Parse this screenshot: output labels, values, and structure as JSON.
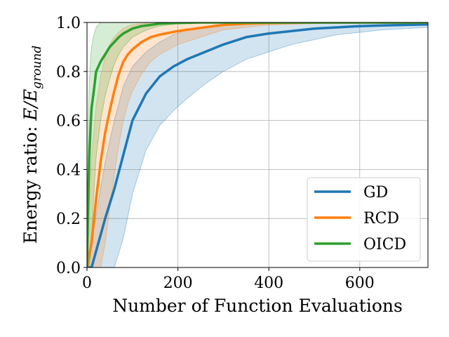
{
  "chart_data": {
    "type": "line",
    "xlabel": "Number of Function Evaluations",
    "ylabel_prefix": "Energy ratio: ",
    "ylabel_math_main": "E/E",
    "ylabel_math_sub": "ground",
    "xlim": [
      0,
      750
    ],
    "ylim": [
      0,
      1.0
    ],
    "xticks": [
      0,
      200,
      400,
      600
    ],
    "yticks": [
      0.0,
      0.2,
      0.4,
      0.6,
      0.8,
      1.0
    ],
    "xtick_labels": [
      "0",
      "200",
      "400",
      "600"
    ],
    "ytick_labels": [
      "0.0",
      "0.2",
      "0.4",
      "0.6",
      "0.8",
      "1.0"
    ],
    "grid": true,
    "legend_position": "lower-right",
    "series": [
      {
        "name": "GD",
        "color": "#1f77b4",
        "x": [
          0,
          10,
          25,
          40,
          60,
          80,
          100,
          130,
          160,
          190,
          220,
          260,
          300,
          350,
          400,
          450,
          500,
          550,
          600,
          650,
          700,
          750
        ],
        "mean": [
          0.0,
          0.0,
          0.1,
          0.2,
          0.32,
          0.46,
          0.6,
          0.71,
          0.78,
          0.82,
          0.85,
          0.88,
          0.91,
          0.94,
          0.955,
          0.965,
          0.975,
          0.98,
          0.985,
          0.988,
          0.99,
          0.992
        ],
        "lower": [
          0.0,
          0.0,
          0.0,
          0.0,
          0.0,
          0.12,
          0.3,
          0.48,
          0.58,
          0.64,
          0.69,
          0.75,
          0.8,
          0.85,
          0.88,
          0.91,
          0.93,
          0.95,
          0.96,
          0.97,
          0.975,
          0.98
        ],
        "upper": [
          0.0,
          0.1,
          0.27,
          0.43,
          0.6,
          0.74,
          0.82,
          0.88,
          0.92,
          0.95,
          0.97,
          0.98,
          0.99,
          0.995,
          1.0,
          1.0,
          1.0,
          1.0,
          1.0,
          1.0,
          1.0,
          1.0
        ]
      },
      {
        "name": "RCD",
        "color": "#ff7f0e",
        "x": [
          0,
          5,
          10,
          20,
          30,
          40,
          50,
          60,
          70,
          80,
          90,
          100,
          120,
          140,
          160,
          200,
          250,
          300,
          350,
          400,
          500,
          600,
          750
        ],
        "mean": [
          0.0,
          0.05,
          0.1,
          0.28,
          0.43,
          0.55,
          0.64,
          0.72,
          0.79,
          0.84,
          0.87,
          0.89,
          0.92,
          0.94,
          0.95,
          0.965,
          0.978,
          0.99,
          0.995,
          0.998,
          1.0,
          1.0,
          1.0
        ],
        "lower": [
          0.0,
          0.0,
          0.0,
          0.0,
          0.0,
          0.1,
          0.24,
          0.38,
          0.5,
          0.6,
          0.67,
          0.72,
          0.79,
          0.84,
          0.87,
          0.91,
          0.94,
          0.97,
          0.98,
          0.99,
          0.995,
          0.998,
          1.0
        ],
        "upper": [
          0.0,
          0.25,
          0.45,
          0.66,
          0.78,
          0.86,
          0.91,
          0.94,
          0.96,
          0.975,
          0.985,
          0.99,
          0.995,
          1.0,
          1.0,
          1.0,
          1.0,
          1.0,
          1.0,
          1.0,
          1.0,
          1.0,
          1.0
        ]
      },
      {
        "name": "OICD",
        "color": "#2ca02c",
        "x": [
          0,
          3,
          5,
          8,
          10,
          15,
          20,
          30,
          40,
          50,
          60,
          70,
          80,
          90,
          100,
          120,
          140,
          160,
          180,
          200,
          250,
          300,
          750
        ],
        "mean": [
          0.0,
          0.3,
          0.45,
          0.58,
          0.65,
          0.72,
          0.8,
          0.84,
          0.87,
          0.9,
          0.92,
          0.94,
          0.955,
          0.965,
          0.975,
          0.985,
          0.99,
          0.995,
          0.997,
          0.998,
          1.0,
          1.0,
          1.0
        ],
        "lower": [
          0.0,
          0.0,
          0.0,
          0.05,
          0.12,
          0.3,
          0.45,
          0.6,
          0.7,
          0.77,
          0.83,
          0.87,
          0.9,
          0.92,
          0.94,
          0.96,
          0.975,
          0.985,
          0.99,
          0.995,
          1.0,
          1.0,
          1.0
        ],
        "upper": [
          0.0,
          0.6,
          0.75,
          0.86,
          0.9,
          0.95,
          0.98,
          1.0,
          1.0,
          1.0,
          1.0,
          1.0,
          1.0,
          1.0,
          1.0,
          1.0,
          1.0,
          1.0,
          1.0,
          1.0,
          1.0,
          1.0,
          1.0
        ]
      }
    ]
  }
}
